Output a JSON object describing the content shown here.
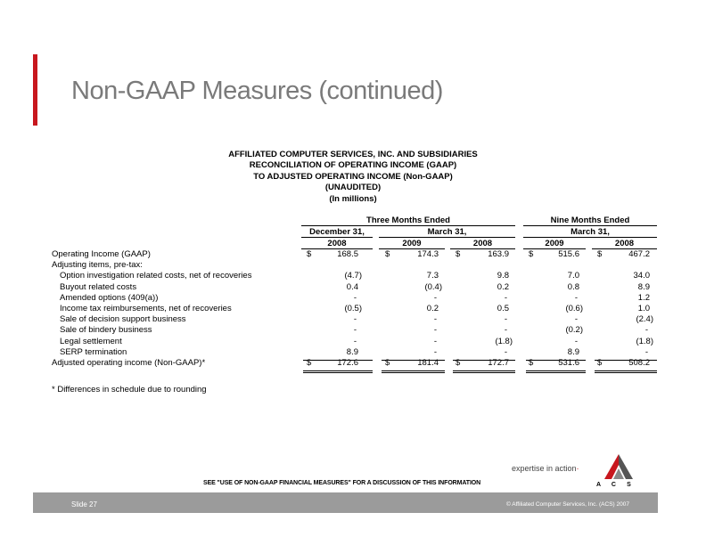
{
  "slide": {
    "title": "Non-GAAP Measures (continued)",
    "accent_color": "#c8171e",
    "footer_color": "#9b9b9b"
  },
  "report_header": {
    "line1": "AFFILIATED COMPUTER SERVICES, INC. AND SUBSIDIARIES",
    "line2": "RECONCILIATION OF OPERATING INCOME (GAAP)",
    "line3": "TO ADJUSTED OPERATING INCOME (Non-GAAP)",
    "line4": "(UNAUDITED)",
    "line5": "(In millions)"
  },
  "table": {
    "group_three_months": "Three Months Ended",
    "group_nine_months": "Nine Months Ended",
    "period_dec31": "December 31,",
    "period_mar31_a": "March 31,",
    "period_mar31_b": "March 31,",
    "col1": "2008",
    "col2": "2009",
    "col3": "2008",
    "col4": "2009",
    "col5": "2008",
    "currency": "$",
    "rows": [
      {
        "label": "Operating Income (GAAP)",
        "values": [
          "168.5",
          "174.3",
          "163.9",
          "515.6",
          "467.2"
        ]
      },
      {
        "label": "Adjusting items, pre-tax:",
        "values": [
          "",
          "",
          "",
          "",
          ""
        ]
      },
      {
        "label": "Option investigation related costs, net of recoveries",
        "values": [
          "(4.7)",
          "7.3",
          "9.8",
          "7.0",
          "34.0"
        ]
      },
      {
        "label": "Buyout related costs",
        "values": [
          "0.4",
          "(0.4)",
          "0.2",
          "0.8",
          "8.9"
        ]
      },
      {
        "label": "Amended options (409(a))",
        "values": [
          "-",
          "-",
          "-",
          "-",
          "1.2"
        ]
      },
      {
        "label": "Income tax reimbursements, net of recoveries",
        "values": [
          "(0.5)",
          "0.2",
          "0.5",
          "(0.6)",
          "1.0"
        ]
      },
      {
        "label": "Sale of decision support business",
        "values": [
          "-",
          "-",
          "-",
          "-",
          "(2.4)"
        ]
      },
      {
        "label": "Sale of bindery business",
        "values": [
          "-",
          "-",
          "-",
          "(0.2)",
          "-"
        ]
      },
      {
        "label": "Legal settlement",
        "values": [
          "-",
          "-",
          "(1.8)",
          "-",
          "(1.8)"
        ]
      },
      {
        "label": "SERP termination",
        "values": [
          "8.9",
          "-",
          "-",
          "8.9",
          "-"
        ]
      },
      {
        "label": "Adjusted operating income (Non-GAAP)*",
        "values": [
          "172.6",
          "181.4",
          "172.7",
          "531.6",
          "508.2"
        ]
      }
    ]
  },
  "footnote": "* Differences in schedule due to rounding",
  "disclaimer": "SEE \"USE OF NON-GAAP FINANCIAL MEASURES\" FOR A DISCUSSION OF THIS INFORMATION",
  "branding": {
    "tagline": "expertise in action",
    "logo_letters": [
      "A",
      "C",
      "S"
    ]
  },
  "footer": {
    "slide_number": "Slide 27",
    "copyright": "© Affiliated Computer Services, Inc. (ACS) 2007"
  }
}
